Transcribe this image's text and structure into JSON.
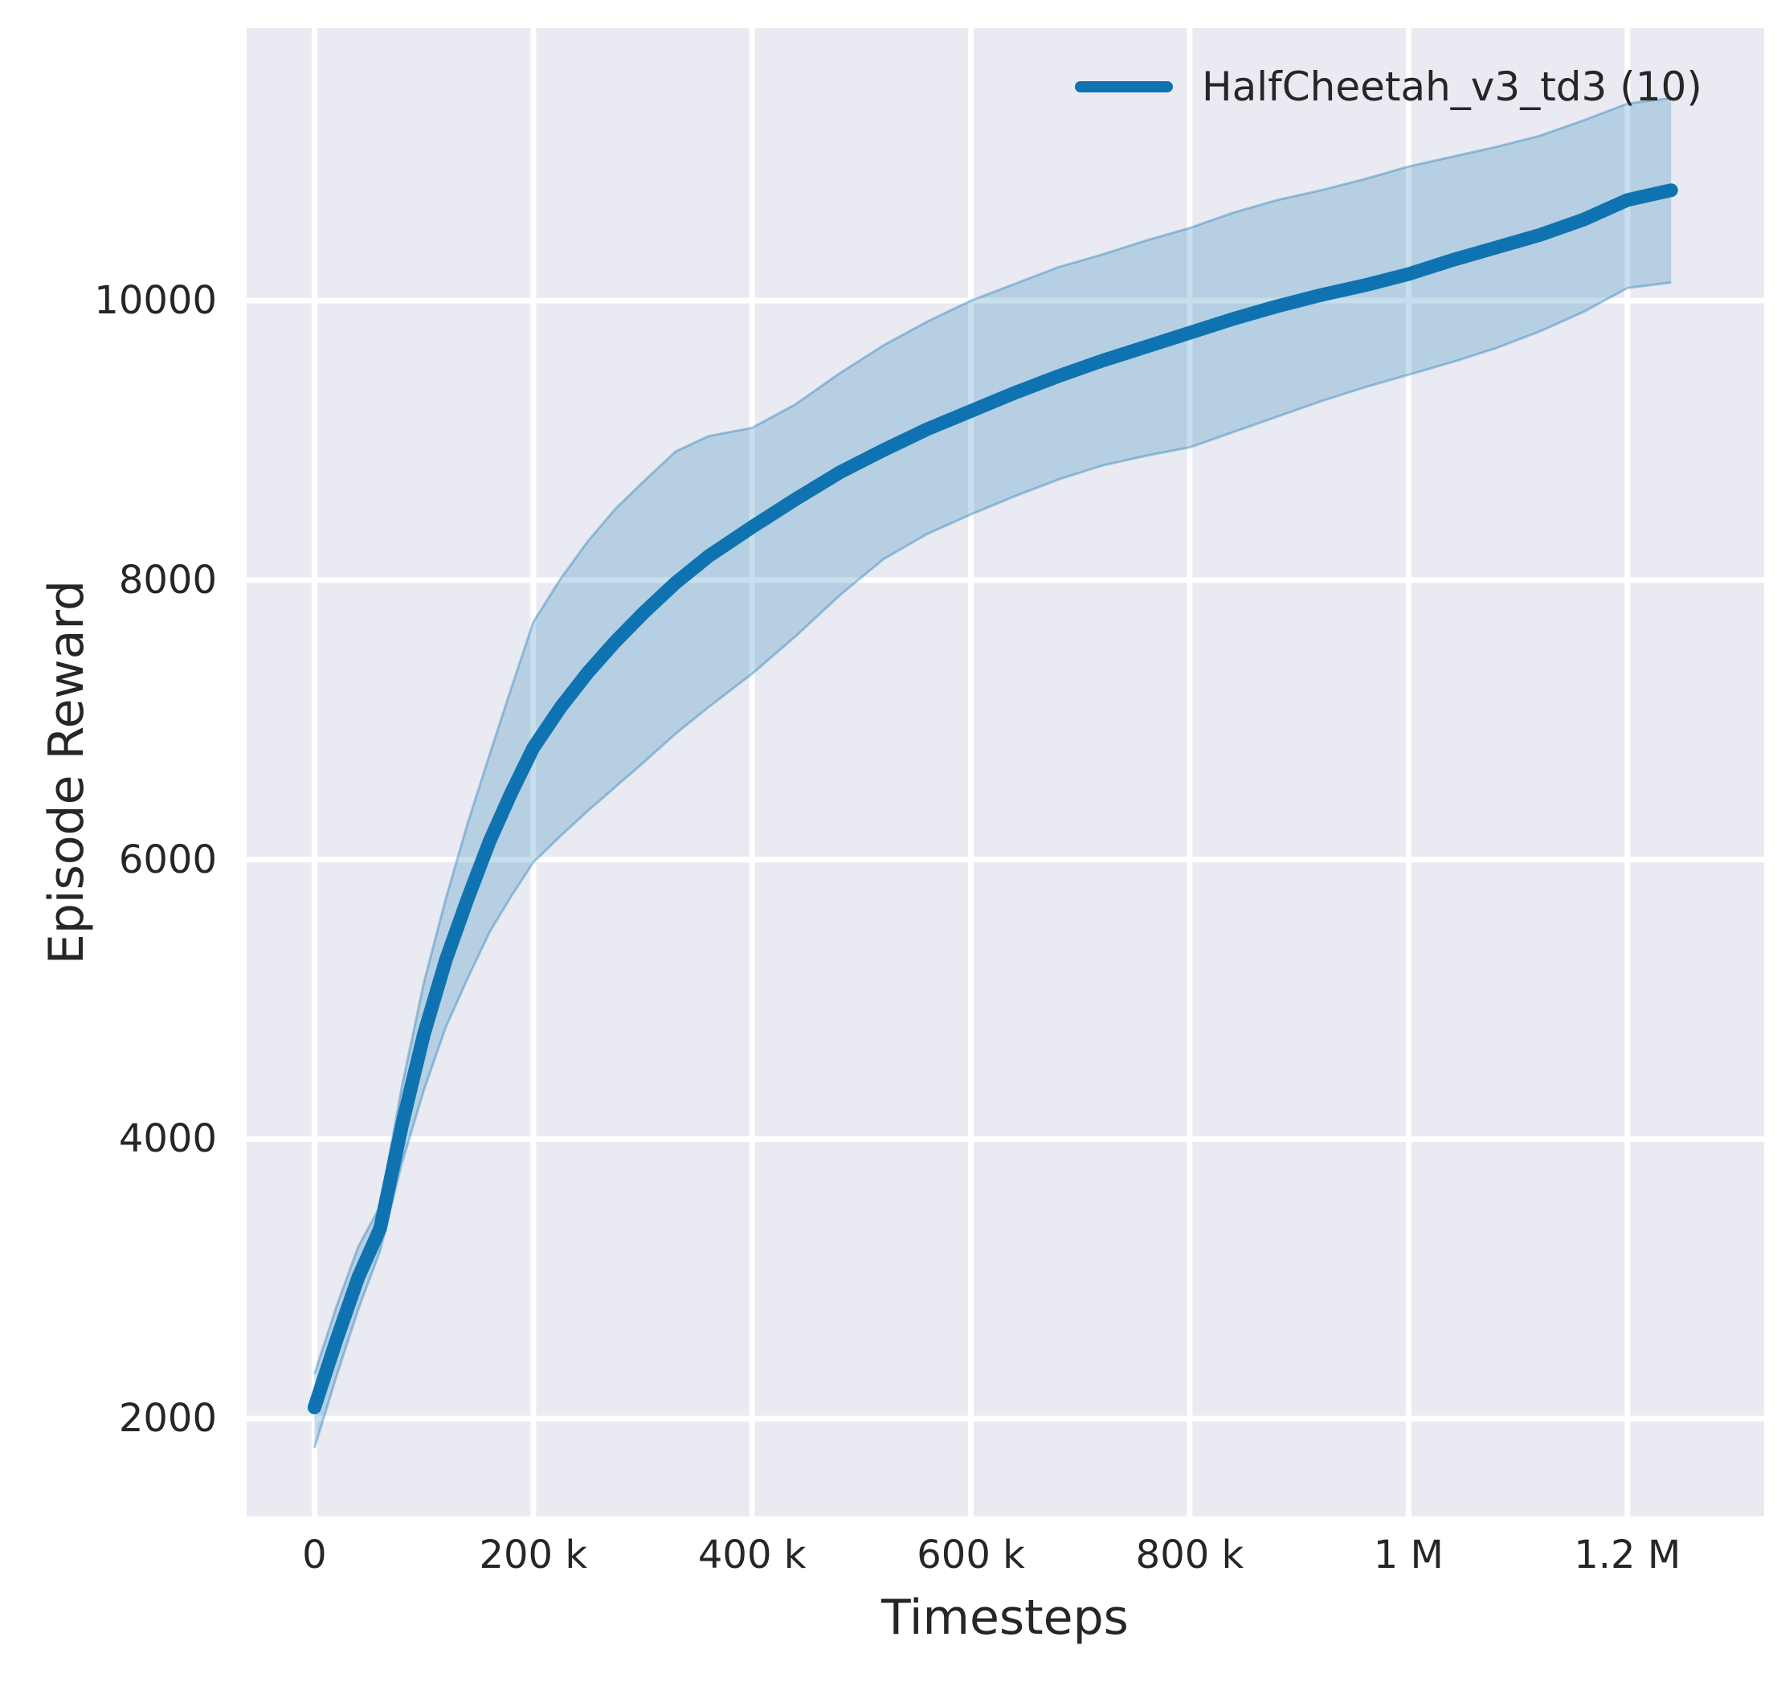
{
  "figure": {
    "background_color": "#ffffff",
    "plot_background_color": "#eaeaf2",
    "grid_color": "#ffffff",
    "text_color": "#262626"
  },
  "chart_data": {
    "type": "line",
    "title": "",
    "xlabel": "Timesteps",
    "ylabel": "Episode Reward",
    "xlim": [
      -62000,
      1325000
    ],
    "ylim": [
      1300,
      11950
    ],
    "grid": true,
    "x_tick_values": [
      0,
      200000,
      400000,
      600000,
      800000,
      1000000,
      1200000
    ],
    "x_tick_labels": [
      "0",
      "200 k",
      "400 k",
      "600 k",
      "800 k",
      "1 M",
      "1.2 M"
    ],
    "y_tick_values": [
      2000,
      4000,
      6000,
      8000,
      10000
    ],
    "y_tick_labels": [
      "2000",
      "4000",
      "6000",
      "8000",
      "10000"
    ],
    "legend": {
      "position": "upper right",
      "entries": [
        {
          "label": "HalfCheetah_v3_td3 (10)",
          "color": "#0f73b2"
        }
      ]
    },
    "series": [
      {
        "name": "HalfCheetah_v3_td3 (10)",
        "color": "#0f73b2",
        "band_fill_alpha": 0.23,
        "band_edge_alpha": 0.35,
        "x": [
          0,
          20000,
          40000,
          60000,
          80000,
          100000,
          120000,
          140000,
          160000,
          180000,
          200000,
          225000,
          250000,
          275000,
          300000,
          330000,
          360000,
          400000,
          440000,
          480000,
          520000,
          560000,
          600000,
          640000,
          680000,
          720000,
          760000,
          800000,
          840000,
          880000,
          920000,
          960000,
          1000000,
          1040000,
          1080000,
          1120000,
          1160000,
          1200000,
          1240000
        ],
        "mean": [
          2080,
          2560,
          3010,
          3360,
          4100,
          4750,
          5280,
          5720,
          6130,
          6480,
          6800,
          7090,
          7340,
          7560,
          7760,
          7980,
          8170,
          8380,
          8580,
          8770,
          8930,
          9080,
          9210,
          9340,
          9460,
          9570,
          9670,
          9770,
          9870,
          9960,
          10040,
          10110,
          10190,
          10290,
          10380,
          10470,
          10580,
          10720,
          10790
        ],
        "lower": [
          1790,
          2300,
          2780,
          3200,
          3830,
          4350,
          4800,
          5150,
          5480,
          5740,
          5980,
          6170,
          6350,
          6520,
          6690,
          6900,
          7090,
          7330,
          7600,
          7890,
          8150,
          8330,
          8470,
          8600,
          8720,
          8820,
          8890,
          8950,
          9060,
          9170,
          9280,
          9380,
          9470,
          9560,
          9660,
          9780,
          9920,
          10090,
          10130
        ],
        "upper": [
          2320,
          2800,
          3230,
          3520,
          4380,
          5120,
          5720,
          6260,
          6750,
          7230,
          7700,
          8010,
          8280,
          8510,
          8700,
          8920,
          9030,
          9090,
          9260,
          9480,
          9680,
          9850,
          10000,
          10120,
          10240,
          10330,
          10430,
          10520,
          10630,
          10720,
          10790,
          10870,
          10960,
          11030,
          11100,
          11180,
          11290,
          11410,
          11450
        ]
      }
    ]
  }
}
